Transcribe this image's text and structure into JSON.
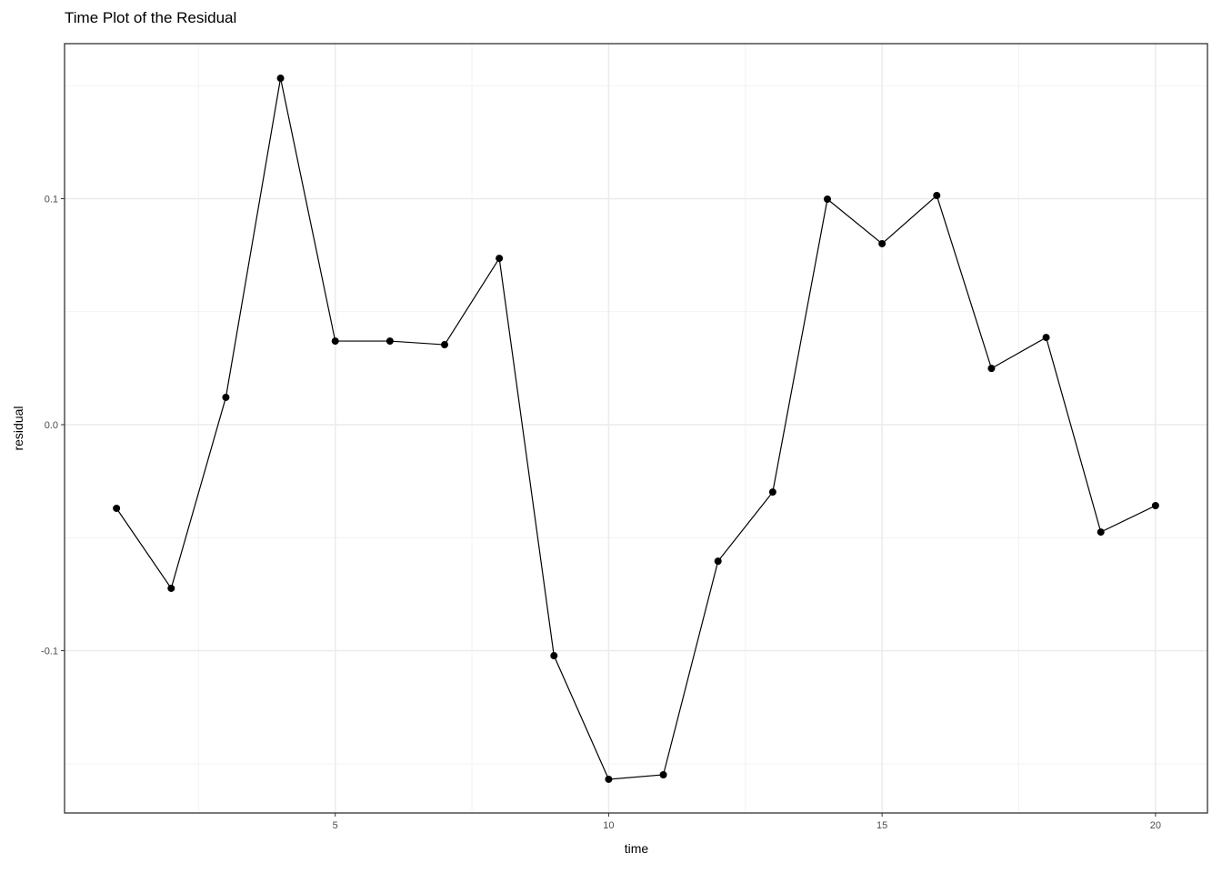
{
  "chart_data": {
    "type": "line",
    "title": "Time Plot of the Residual",
    "xlabel": "time",
    "ylabel": "residual",
    "x": [
      1,
      2,
      3,
      4,
      5,
      6,
      7,
      8,
      9,
      10,
      11,
      12,
      13,
      14,
      15,
      16,
      17,
      18,
      19,
      20
    ],
    "series": [
      {
        "values": [
          -0.037,
          -0.0724,
          0.0121,
          0.1533,
          0.037,
          0.037,
          0.0354,
          0.0736,
          -0.1022,
          -0.1569,
          -0.1549,
          -0.0604,
          -0.0298,
          0.0998,
          0.0801,
          0.1014,
          0.0249,
          0.0386,
          -0.0475,
          -0.0358
        ],
        "color": "#000000",
        "markers": true
      }
    ],
    "xlim": [
      0.05,
      20.95
    ],
    "ylim": [
      -0.1718,
      0.1686
    ],
    "xticks": [
      5,
      10,
      15,
      20
    ],
    "xtick_labels": [
      "5",
      "10",
      "15",
      "20"
    ],
    "yticks": [
      -0.1,
      0.0,
      0.1
    ],
    "ytick_labels": [
      "-0.1",
      "0.0",
      "0.1"
    ],
    "grid": true,
    "theme": "bw"
  }
}
